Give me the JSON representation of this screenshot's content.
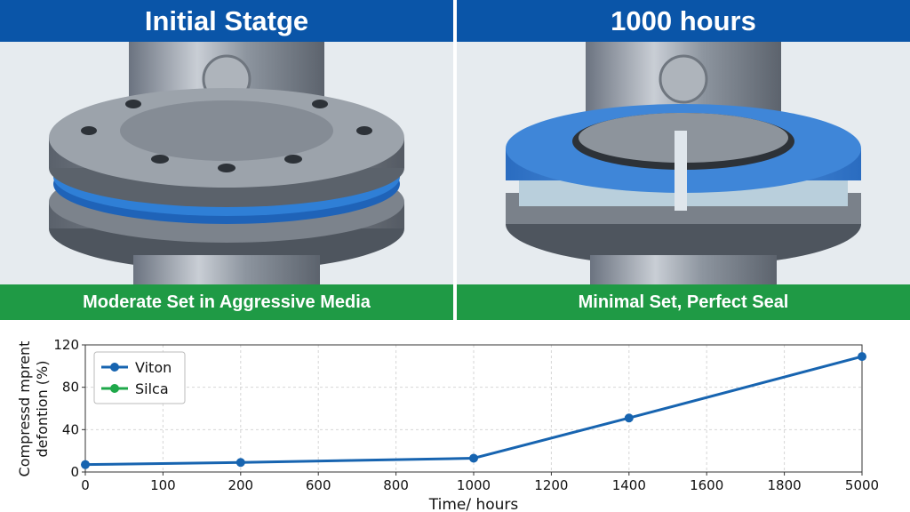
{
  "panels": {
    "left": {
      "title": "Initial Statge",
      "caption": "Moderate Set in Aggressive Media",
      "seal_color": "#2f7fd6"
    },
    "right": {
      "title": "1000 hours",
      "caption": "Minimal Set, Perfect Seal",
      "seal_color": "#3f86d8"
    }
  },
  "colors": {
    "banner_blue": "#0a55a8",
    "banner_green": "#1f9a45",
    "viton": "#1764b0",
    "silca": "#1fa84a"
  },
  "chart_data": {
    "type": "line",
    "xlabel": "Time/ hours",
    "ylabel_lines": [
      "Compressd mprent",
      "defontion (%)"
    ],
    "categories": [
      "0",
      "100",
      "200",
      "600",
      "800",
      "1000",
      "1200",
      "1400",
      "1600",
      "1800",
      "5000"
    ],
    "y_ticks": [
      0,
      40,
      80,
      120
    ],
    "ylim": [
      0,
      120
    ],
    "grid": true,
    "legend_position": "top-left",
    "series": [
      {
        "name": "Viton",
        "color": "#1764b0",
        "points": [
          {
            "x": "0",
            "y": 7
          },
          {
            "x": "200",
            "y": 9
          },
          {
            "x": "1000",
            "y": 13
          },
          {
            "x": "1400",
            "y": 51
          },
          {
            "x": "5000",
            "y": 109
          }
        ]
      },
      {
        "name": "Silca",
        "color": "#1fa84a",
        "points": []
      }
    ]
  }
}
